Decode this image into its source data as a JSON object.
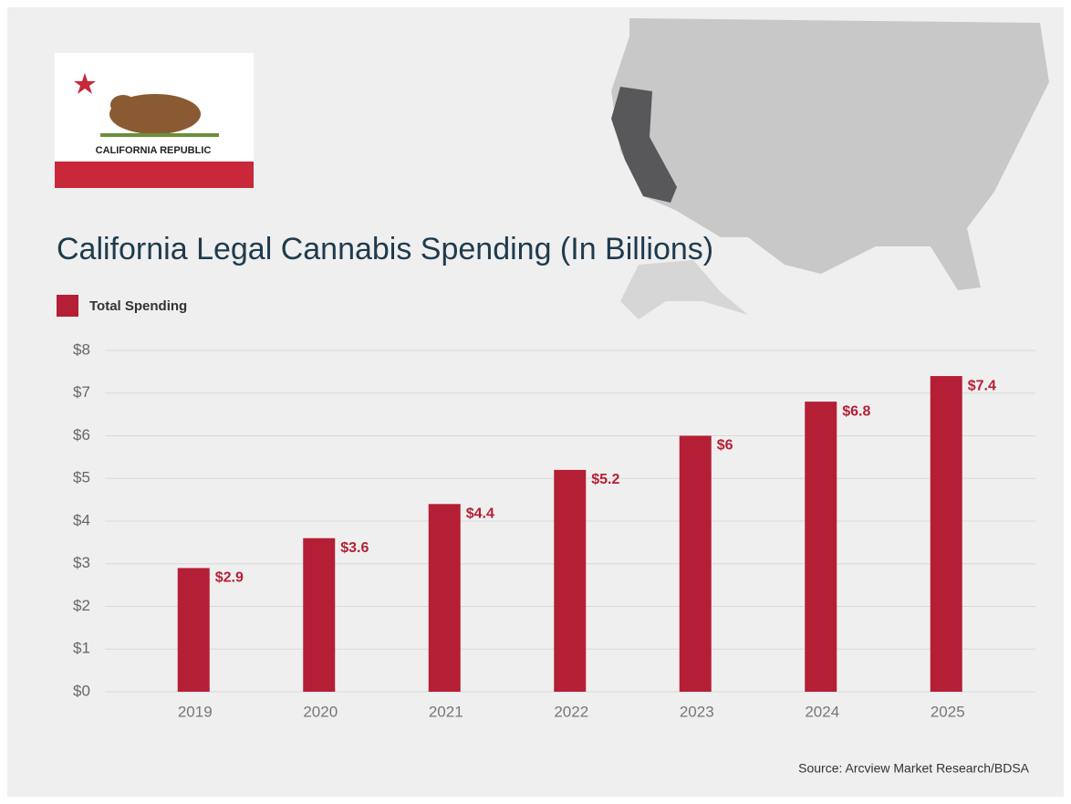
{
  "chart_data": {
    "type": "bar",
    "title": "California Legal Cannabis Spending (In Billions)",
    "flag_label": "CALIFORNIA REPUBLIC",
    "source": "Source: Arcview Market Research/BDSA",
    "categories": [
      "2019",
      "2020",
      "2021",
      "2022",
      "2023",
      "2024",
      "2025"
    ],
    "series": [
      {
        "name": "Total Spending",
        "color": "#b51f36",
        "values": [
          2.9,
          3.6,
          4.4,
          5.2,
          6,
          6.8,
          7.4
        ],
        "value_labels": [
          "$2.9",
          "$3.6",
          "$4.4",
          "$5.2",
          "$6",
          "$6.8",
          "$7.4"
        ]
      }
    ],
    "ylim": [
      0,
      8
    ],
    "yticks": [
      {
        "value": 0,
        "label": "$0"
      },
      {
        "value": 1,
        "label": "$1"
      },
      {
        "value": 2,
        "label": "$2"
      },
      {
        "value": 3,
        "label": "$3"
      },
      {
        "value": 4,
        "label": "$4"
      },
      {
        "value": 5,
        "label": "$5"
      },
      {
        "value": 6,
        "label": "$6"
      },
      {
        "value": 7,
        "label": "$7"
      },
      {
        "value": 8,
        "label": "$8"
      }
    ],
    "grid": true
  }
}
